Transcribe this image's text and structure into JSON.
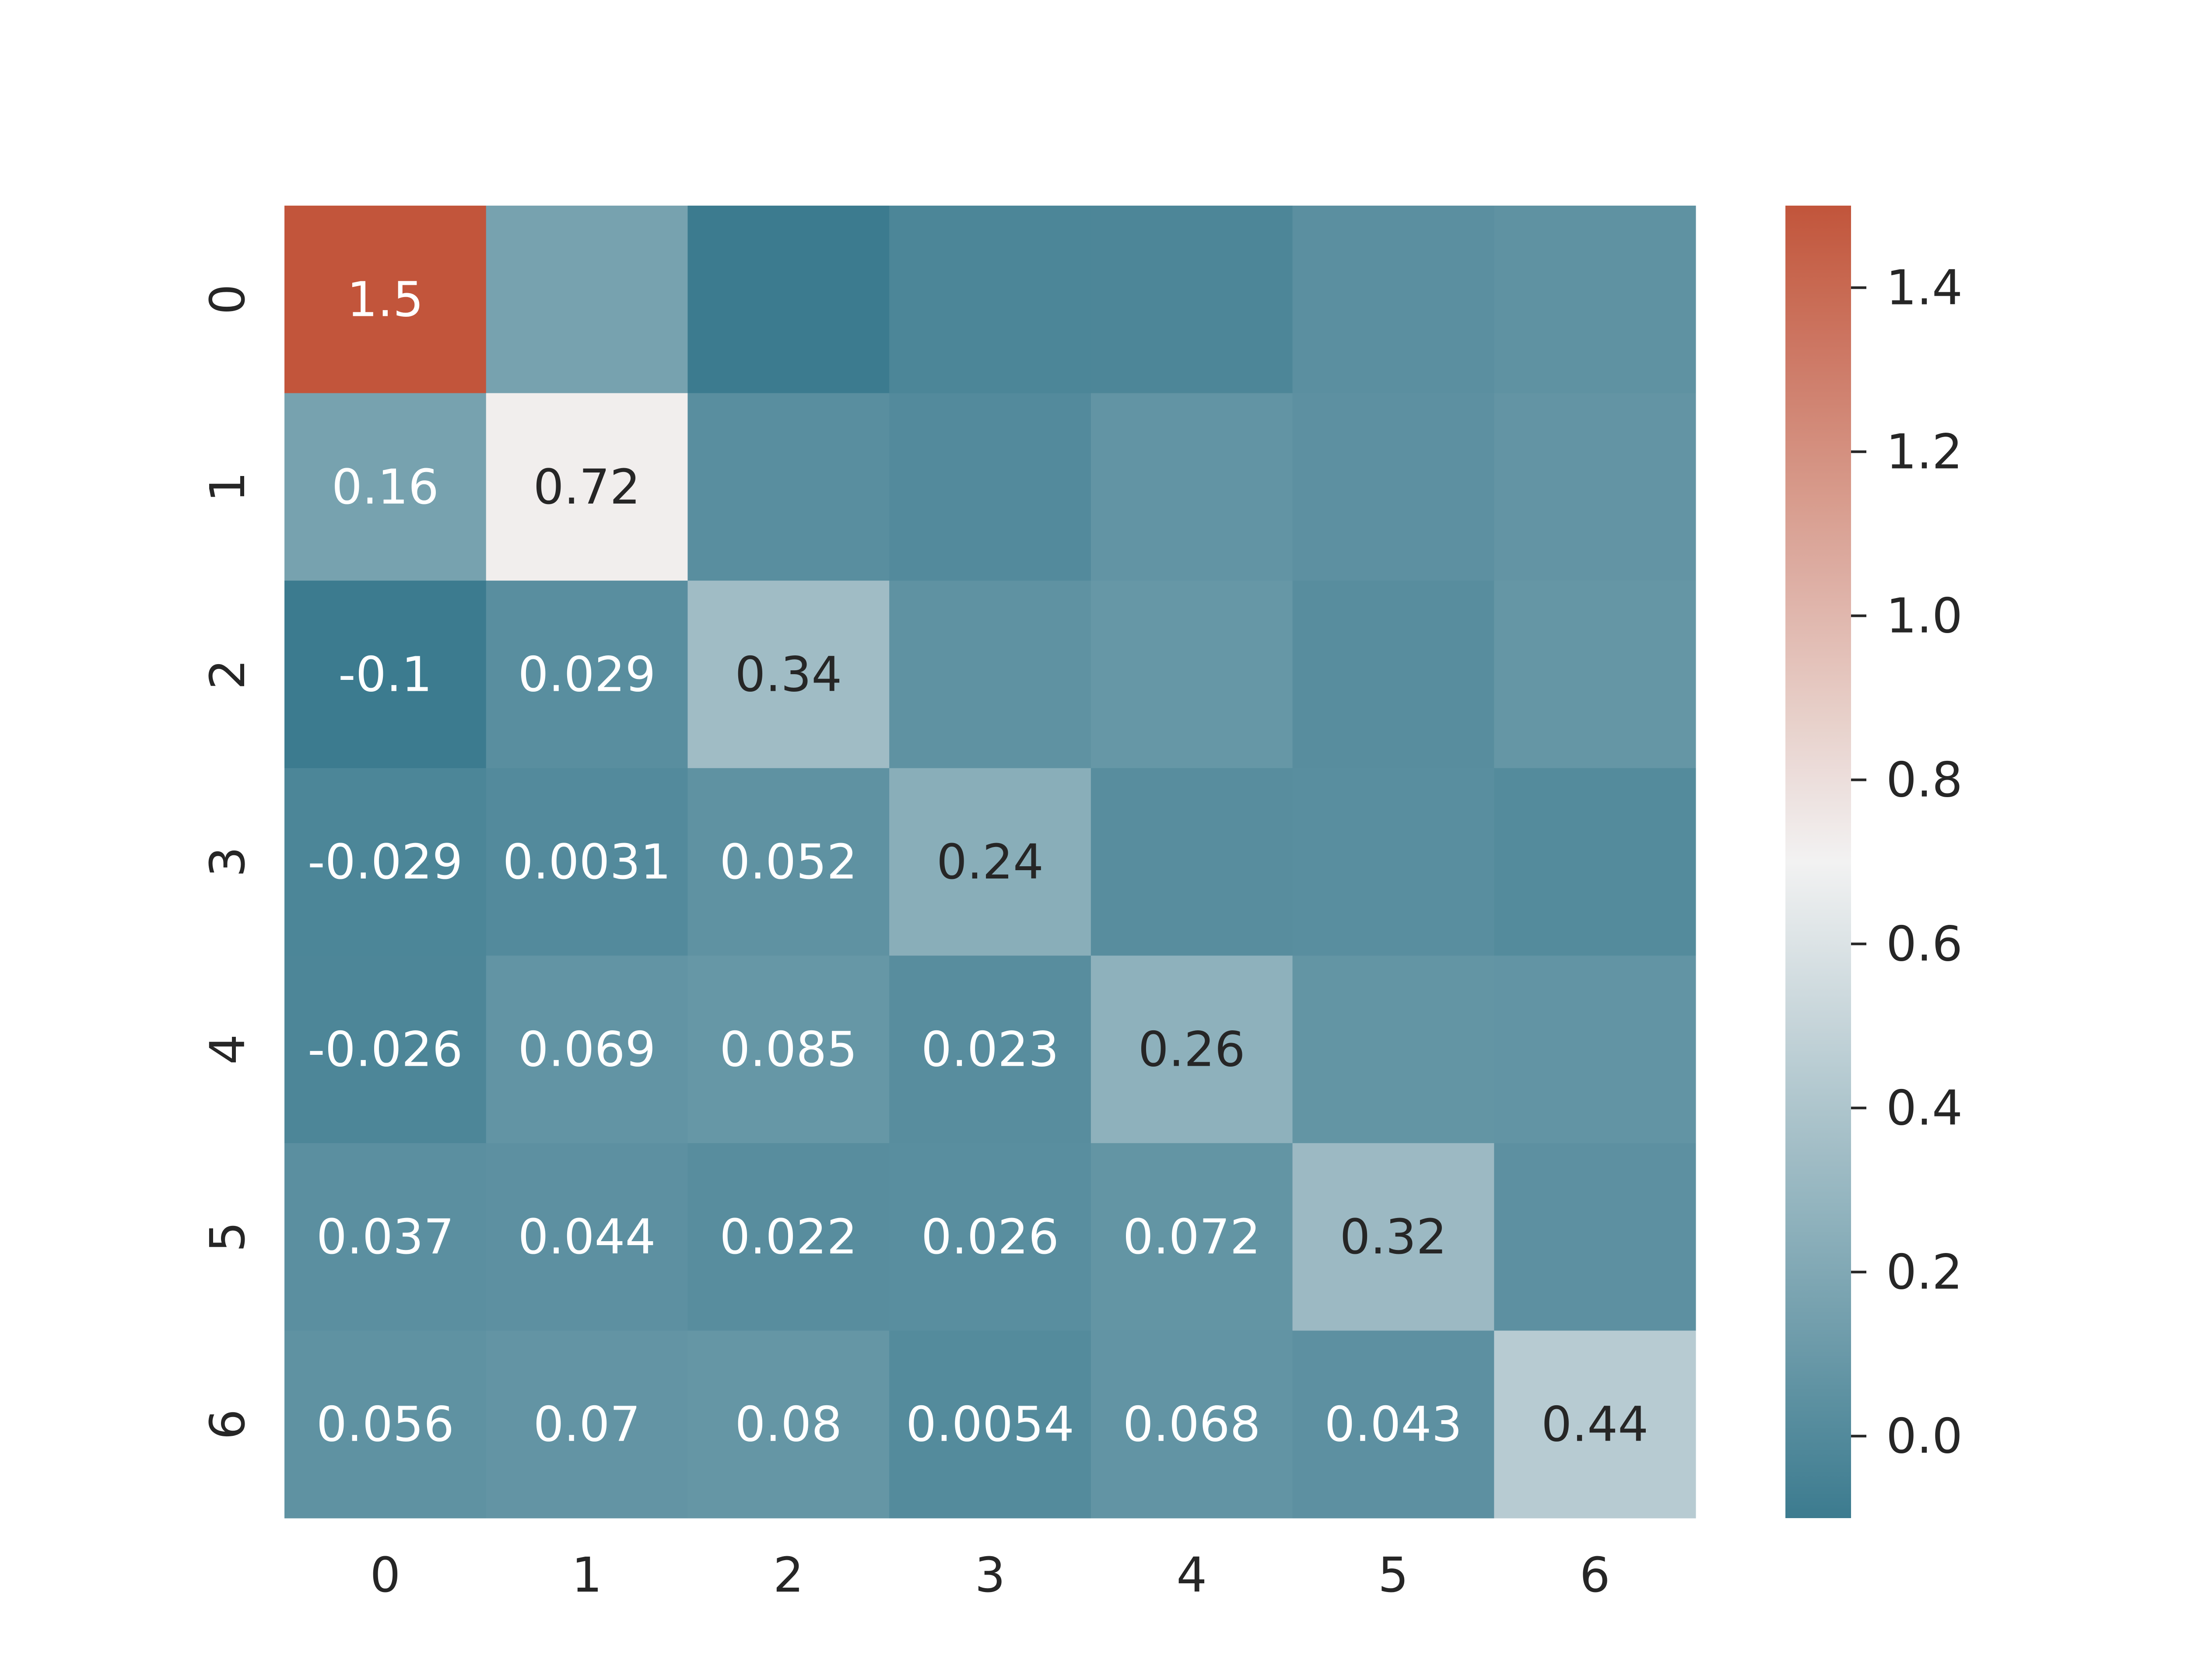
{
  "chart_data": {
    "type": "heatmap",
    "title": "",
    "xlabel": "",
    "ylabel": "",
    "x_tick_labels": [
      "0",
      "1",
      "2",
      "3",
      "4",
      "5",
      "6"
    ],
    "y_tick_labels": [
      "0",
      "1",
      "2",
      "3",
      "4",
      "5",
      "6"
    ],
    "values": [
      [
        1.5,
        0.16,
        -0.1,
        -0.029,
        -0.026,
        0.037,
        0.056
      ],
      [
        0.16,
        0.72,
        0.029,
        0.0031,
        0.069,
        0.044,
        0.07
      ],
      [
        -0.1,
        0.029,
        0.34,
        0.052,
        0.085,
        0.022,
        0.08
      ],
      [
        -0.029,
        0.0031,
        0.052,
        0.24,
        0.023,
        0.026,
        0.0054
      ],
      [
        -0.026,
        0.069,
        0.085,
        0.023,
        0.26,
        0.072,
        0.068
      ],
      [
        0.037,
        0.044,
        0.022,
        0.026,
        0.072,
        0.32,
        0.043
      ],
      [
        0.056,
        0.07,
        0.08,
        0.0054,
        0.068,
        0.043,
        0.44
      ]
    ],
    "cell_labels": [
      [
        "1.5",
        "",
        "",
        "",
        "",
        "",
        ""
      ],
      [
        "0.16",
        "0.72",
        "",
        "",
        "",
        "",
        ""
      ],
      [
        "-0.1",
        "0.029",
        "0.34",
        "",
        "",
        "",
        ""
      ],
      [
        "-0.029",
        "0.0031",
        "0.052",
        "0.24",
        "",
        "",
        ""
      ],
      [
        "-0.026",
        "0.069",
        "0.085",
        "0.023",
        "0.26",
        "",
        ""
      ],
      [
        "0.037",
        "0.044",
        "0.022",
        "0.026",
        "0.072",
        "0.32",
        ""
      ],
      [
        "0.056",
        "0.07",
        "0.08",
        "0.0054",
        "0.068",
        "0.043",
        "0.44"
      ]
    ],
    "mask": "upper triangle unlabeled",
    "colorbar": {
      "range": [
        -0.1,
        1.5
      ],
      "ticks": [
        0.0,
        0.2,
        0.4,
        0.6,
        0.8,
        1.0,
        1.2,
        1.4
      ],
      "tick_labels": [
        "0.0",
        "0.2",
        "0.4",
        "0.6",
        "0.8",
        "1.0",
        "1.2",
        "1.4"
      ]
    },
    "colormap": {
      "low": "#3c7b8f",
      "mid": "#f2f2f2",
      "high": "#c2553b",
      "center_value": 0.7
    },
    "text_colors": {
      "light": "#ffffff",
      "dark": "#262626"
    }
  }
}
